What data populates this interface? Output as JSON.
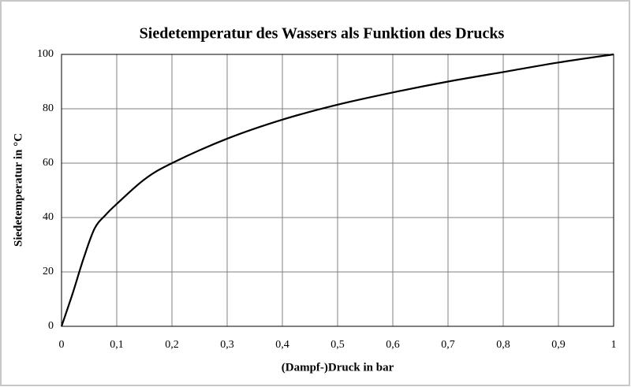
{
  "chart_data": {
    "type": "line",
    "title": "Siedetemperatur des Wassers als Funktion des Drucks",
    "x_label": "(Dampf-)Druck in bar",
    "y_label": "Siedetemperatur in °C",
    "x": [
      0,
      0.02,
      0.04,
      0.06,
      0.08,
      0.1,
      0.15,
      0.2,
      0.3,
      0.4,
      0.5,
      0.6,
      0.7,
      0.8,
      0.9,
      1.0
    ],
    "series": [
      {
        "color": "#000000",
        "values": [
          0,
          12,
          25,
          36,
          41,
          45,
          54,
          60,
          69,
          76,
          81.5,
          86,
          90,
          93.5,
          97,
          100
        ]
      }
    ],
    "xlim": [
      0,
      1
    ],
    "xticks": [
      0,
      {
        "value": 0.1,
        "label": "0,1"
      },
      {
        "value": 0.2,
        "label": "0,2"
      },
      {
        "value": 0.3,
        "label": "0,3"
      },
      {
        "value": 0.4,
        "label": "0,4"
      },
      {
        "value": 0.5,
        "label": "0,5"
      },
      {
        "value": 0.6,
        "label": "0,6"
      },
      {
        "value": 0.7,
        "label": "0,7"
      },
      {
        "value": 0.8,
        "label": "0,8"
      },
      {
        "value": 0.9,
        "label": "0,9"
      },
      1
    ],
    "ylim": [
      0,
      100
    ],
    "yticks": [
      0,
      20,
      40,
      60,
      80,
      100
    ],
    "grid": true
  }
}
